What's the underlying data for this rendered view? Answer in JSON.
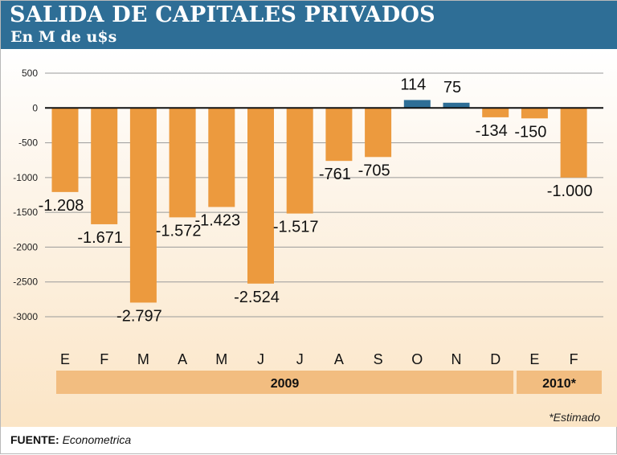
{
  "header": {
    "title": "SALIDA DE CAPITALES PRIVADOS",
    "subtitle": "En M de u$s"
  },
  "footer": {
    "estimado_note": "*Estimado",
    "source_label": "FUENTE:",
    "source_value": "Econometrica"
  },
  "colors": {
    "header_bg": "#2e6e96",
    "negative_bar": "#ec9a3e",
    "positive_bar": "#2e6e96",
    "year_band": "#f2bd80"
  },
  "chart_data": {
    "type": "bar",
    "title": "SALIDA DE CAPITALES PRIVADOS",
    "subtitle": "En M de u$s",
    "categories": [
      "E",
      "F",
      "M",
      "A",
      "M",
      "J",
      "J",
      "A",
      "S",
      "O",
      "N",
      "D",
      "E",
      "F"
    ],
    "values": [
      -1208,
      -1671,
      -2797,
      -1572,
      -1423,
      -2524,
      -1517,
      -761,
      -705,
      114,
      75,
      -134,
      -150,
      -1000
    ],
    "value_labels": [
      "-1.208",
      "-1.671",
      "-2.797",
      "-1.572",
      "-1.423",
      "-2.524",
      "-1.517",
      "-761",
      "-705",
      "114",
      "75",
      "-134",
      "-150",
      "-1.000"
    ],
    "year_groups": [
      {
        "label": "2009",
        "start": 0,
        "end": 11
      },
      {
        "label": "2010*",
        "start": 12,
        "end": 13
      }
    ],
    "ylim": [
      -3000,
      500
    ],
    "yticks": [
      500,
      0,
      -500,
      -1000,
      -1500,
      -2000,
      -2500,
      -3000
    ],
    "ytick_labels": [
      "500",
      "0",
      "-500",
      "-1000",
      "-1500",
      "-2000",
      "-2500",
      "-3000"
    ],
    "grid": true,
    "legend": "none"
  }
}
